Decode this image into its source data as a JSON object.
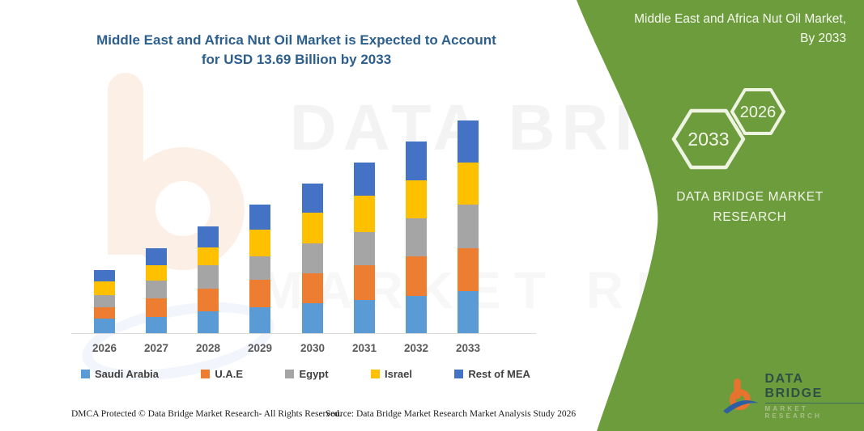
{
  "title": {
    "line1": "Middle East and Africa Nut Oil Market is Expected to Account",
    "line2": "for USD 13.69 Billion by 2033"
  },
  "panel": {
    "heading_line1": "Middle East and Africa Nut Oil Market,",
    "heading_line2": "By 2033",
    "hexagon_left": "2033",
    "hexagon_right": "2026",
    "brand_line1": "DATA BRIDGE MARKET",
    "brand_line2": "RESEARCH",
    "background_color": "#6d9c3d",
    "hexagon_stroke_color": "#eef3e2"
  },
  "watermark": {
    "line1": "DATA BRIDGE",
    "line2": "MARKET RESEARCH"
  },
  "logo": {
    "name": "DATA BRIDGE",
    "subtitle": "MARKET RESEARCH"
  },
  "footer": {
    "left": "DMCA Protected © Data Bridge Market Research-  All Rights Reserved.",
    "right": "Source: Data Bridge Market Research  Market Analysis Study 2026"
  },
  "chart_data": {
    "type": "bar",
    "stacked": true,
    "title": "Middle East and Africa Nut Oil Market is Expected to Account for USD 13.69 Billion by 2033",
    "unit": "USD Billion",
    "xlabel": "",
    "ylabel": "",
    "grid": false,
    "y_axis_visible": false,
    "legend_position": "bottom",
    "categories": [
      "2026",
      "2027",
      "2028",
      "2029",
      "2030",
      "2031",
      "2032",
      "2033"
    ],
    "series": [
      {
        "name": "Saudi Arabia",
        "color": "#5b9bd5",
        "values": [
          0.92,
          1.04,
          1.43,
          1.66,
          1.95,
          2.16,
          2.42,
          2.69
        ]
      },
      {
        "name": "U.A.E",
        "color": "#ed7d31",
        "values": [
          0.74,
          1.21,
          1.42,
          1.76,
          1.9,
          2.21,
          2.52,
          2.8
        ]
      },
      {
        "name": "Egypt",
        "color": "#a5a5a5",
        "values": [
          0.81,
          1.12,
          1.52,
          1.55,
          1.95,
          2.16,
          2.45,
          2.76
        ]
      },
      {
        "name": "Israel",
        "color": "#ffc000",
        "values": [
          0.86,
          1.0,
          1.16,
          1.69,
          1.93,
          2.33,
          2.42,
          2.71
        ]
      },
      {
        "name": "Rest of MEA",
        "color": "#4472c4",
        "values": [
          0.74,
          1.12,
          1.35,
          1.59,
          1.9,
          2.11,
          2.54,
          2.73
        ]
      }
    ],
    "totals": [
      4.07,
      5.49,
      6.88,
      8.25,
      9.63,
      10.97,
      12.35,
      13.69
    ],
    "ylim": [
      0,
      13.69
    ],
    "highlight_value": "USD 13.69 Billion",
    "highlight_year": "2033"
  }
}
